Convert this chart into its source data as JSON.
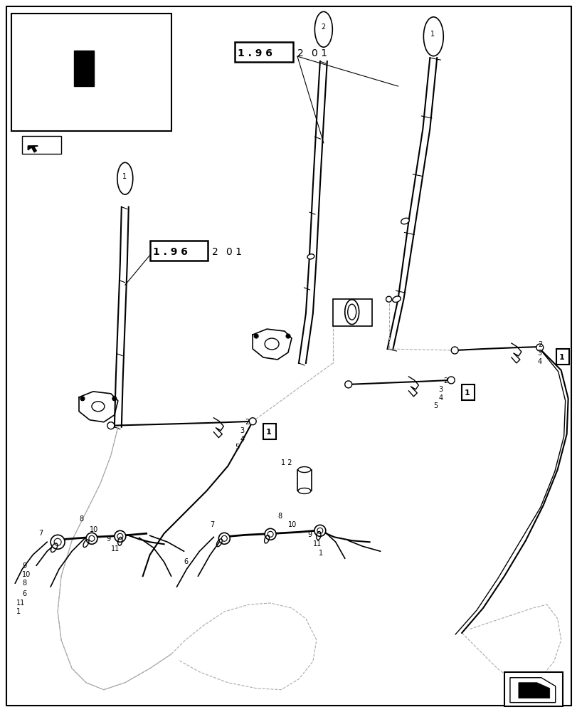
{
  "bg_color": "#ffffff",
  "line_color": "#000000",
  "light_gray": "#aaaaaa",
  "fig_width": 8.12,
  "fig_height": 10.0,
  "dpi": 100
}
